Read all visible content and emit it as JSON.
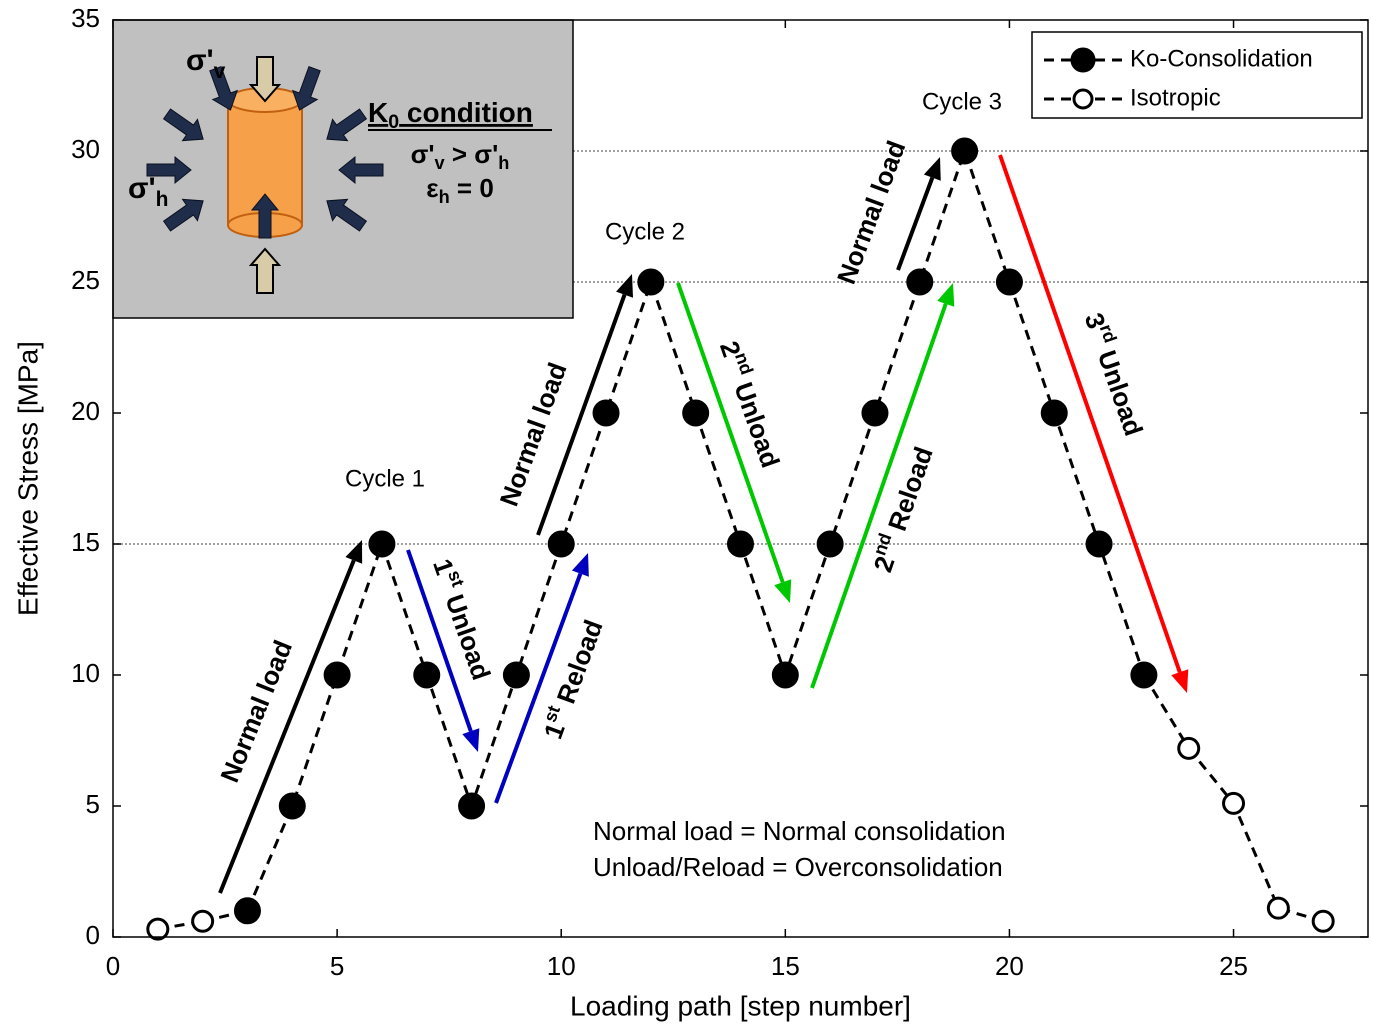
{
  "chart_data": {
    "type": "line",
    "xlabel": "Loading path [step number]",
    "ylabel": "Effective Stress [MPa]",
    "x": [
      1,
      2,
      3,
      4,
      5,
      6,
      7,
      8,
      9,
      10,
      11,
      12,
      13,
      14,
      15,
      16,
      17,
      18,
      19,
      20,
      21,
      22,
      23,
      24,
      25,
      26,
      27
    ],
    "series": [
      {
        "name": "Ko-Consolidation",
        "color": "#000000",
        "marker": "filled",
        "values": [
          null,
          null,
          1,
          5,
          10,
          15,
          10,
          5,
          10,
          15,
          20,
          25,
          20,
          15,
          10,
          15,
          20,
          25,
          30,
          25,
          20,
          15,
          10,
          null,
          null,
          null,
          null
        ]
      },
      {
        "name": "Isotropic",
        "color": "#000000",
        "marker": "open",
        "values": [
          0.3,
          0.6,
          null,
          null,
          null,
          null,
          null,
          null,
          null,
          null,
          null,
          null,
          null,
          null,
          null,
          null,
          null,
          null,
          null,
          null,
          null,
          null,
          null,
          7.2,
          5.1,
          1.1,
          0.6
        ]
      }
    ],
    "linestyle": "dashed",
    "xlim": [
      0,
      28
    ],
    "ylim": [
      0,
      35
    ],
    "xticks": [
      0,
      5,
      10,
      15,
      20,
      25
    ],
    "yticks": [
      0,
      5,
      10,
      15,
      20,
      25,
      30,
      35
    ],
    "hlines": [
      15,
      25,
      30
    ],
    "legend": "upper right",
    "cycle_labels": [
      "Cycle 1",
      "Cycle 2",
      "Cycle 3"
    ],
    "annotations": [
      {
        "parts": [
          "Normal load"
        ],
        "color": "#000000"
      },
      {
        "parts": [
          "1",
          "st",
          " Unload"
        ],
        "color": "#0000c0"
      },
      {
        "parts": [
          "1",
          "st",
          " Reload"
        ],
        "color": "#0000c0"
      },
      {
        "parts": [
          "Normal load"
        ],
        "color": "#000000"
      },
      {
        "parts": [
          "2",
          "nd",
          " Unload"
        ],
        "color": "#00c800"
      },
      {
        "parts": [
          "2",
          "nd",
          " Reload"
        ],
        "color": "#00c800"
      },
      {
        "parts": [
          "Normal load"
        ],
        "color": "#000000"
      },
      {
        "parts": [
          "3",
          "rd",
          " Unload"
        ],
        "color": "#ff0000"
      }
    ],
    "notes": [
      "Normal load = Normal consolidation",
      "Unload/Reload = Overconsolidation"
    ],
    "inset": {
      "sigma_v": [
        "σ'",
        "v"
      ],
      "sigma_h": [
        "σ'",
        "h"
      ],
      "title": [
        "K",
        "0",
        " condition"
      ],
      "line1": [
        "σ'",
        "v",
        " > σ'",
        "h"
      ],
      "line2": [
        "ε",
        "h",
        " = 0"
      ]
    }
  }
}
